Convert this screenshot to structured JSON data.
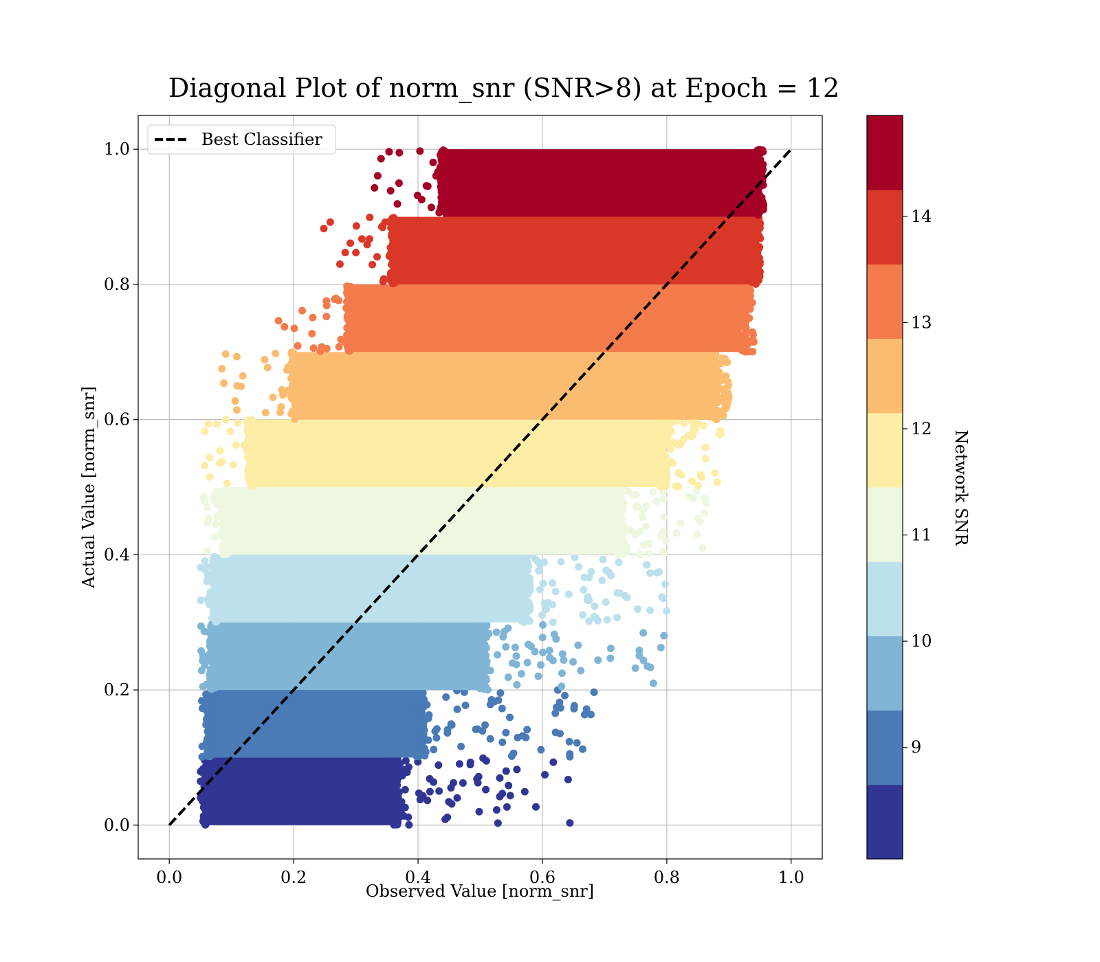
{
  "chart_data": {
    "type": "scatter",
    "title": "Diagonal Plot of norm_snr (SNR>8) at Epoch = 12",
    "xlabel": "Observed Value [norm_snr]",
    "ylabel": "Actual Value [norm_snr]",
    "xlim": [
      -0.05,
      1.05
    ],
    "ylim": [
      -0.05,
      1.05
    ],
    "xticks": [
      "0.0",
      "0.2",
      "0.4",
      "0.6",
      "0.8",
      "1.0"
    ],
    "yticks": [
      "0.0",
      "0.2",
      "0.4",
      "0.6",
      "0.8",
      "1.0"
    ],
    "grid": true,
    "legend": {
      "position": "top-left",
      "entries": [
        "Best Classifier"
      ]
    },
    "reference_line": {
      "name": "Best Classifier",
      "style": "dashed",
      "color": "#000000",
      "x": [
        0.0,
        1.0
      ],
      "y": [
        0.0,
        1.0
      ]
    },
    "colorbar": {
      "label": "Network SNR",
      "ticks": [
        "9",
        "10",
        "11",
        "12",
        "13",
        "14"
      ],
      "range": [
        8.0,
        15.0
      ],
      "colors": [
        "#313695",
        "#4a7bb7",
        "#80b5d6",
        "#bde1ec",
        "#eef7df",
        "#fdeda5",
        "#fbbc6f",
        "#f47b4b",
        "#d93828",
        "#a50026"
      ]
    },
    "bands": [
      {
        "y_range": [
          0.0,
          0.1
        ],
        "x_range": [
          0.06,
          0.36
        ],
        "x_scatter_max": 0.66,
        "color": "#313695"
      },
      {
        "y_range": [
          0.1,
          0.2
        ],
        "x_range": [
          0.065,
          0.4
        ],
        "x_scatter_max": 0.69,
        "color": "#4a7bb7"
      },
      {
        "y_range": [
          0.2,
          0.3
        ],
        "x_range": [
          0.07,
          0.5
        ],
        "x_scatter_max": 0.82,
        "color": "#80b5d6"
      },
      {
        "y_range": [
          0.3,
          0.4
        ],
        "x_range": [
          0.075,
          0.57
        ],
        "x_scatter_max": 0.8,
        "color": "#bde1ec"
      },
      {
        "y_range": [
          0.4,
          0.5
        ],
        "x_range": [
          0.09,
          0.72
        ],
        "x_scatter_max": 0.87,
        "color": "#eef7df"
      },
      {
        "y_range": [
          0.5,
          0.6
        ],
        "x_range": [
          0.13,
          0.79
        ],
        "x_scatter_max": 0.89,
        "color": "#fdeda5"
      },
      {
        "y_range": [
          0.6,
          0.7
        ],
        "x_range": [
          0.2,
          0.87
        ],
        "x_scatter_max": 0.9,
        "color": "#fbbc6f"
      },
      {
        "y_range": [
          0.7,
          0.8
        ],
        "x_range": [
          0.29,
          0.92
        ],
        "x_scatter_max": 0.94,
        "color": "#f47b4b"
      },
      {
        "y_range": [
          0.8,
          0.9
        ],
        "x_range": [
          0.36,
          0.94
        ],
        "x_scatter_max": 0.95,
        "color": "#d93828"
      },
      {
        "y_range": [
          0.9,
          1.0
        ],
        "x_range": [
          0.44,
          0.945
        ],
        "x_scatter_max": 0.95,
        "color": "#a50026"
      }
    ]
  }
}
